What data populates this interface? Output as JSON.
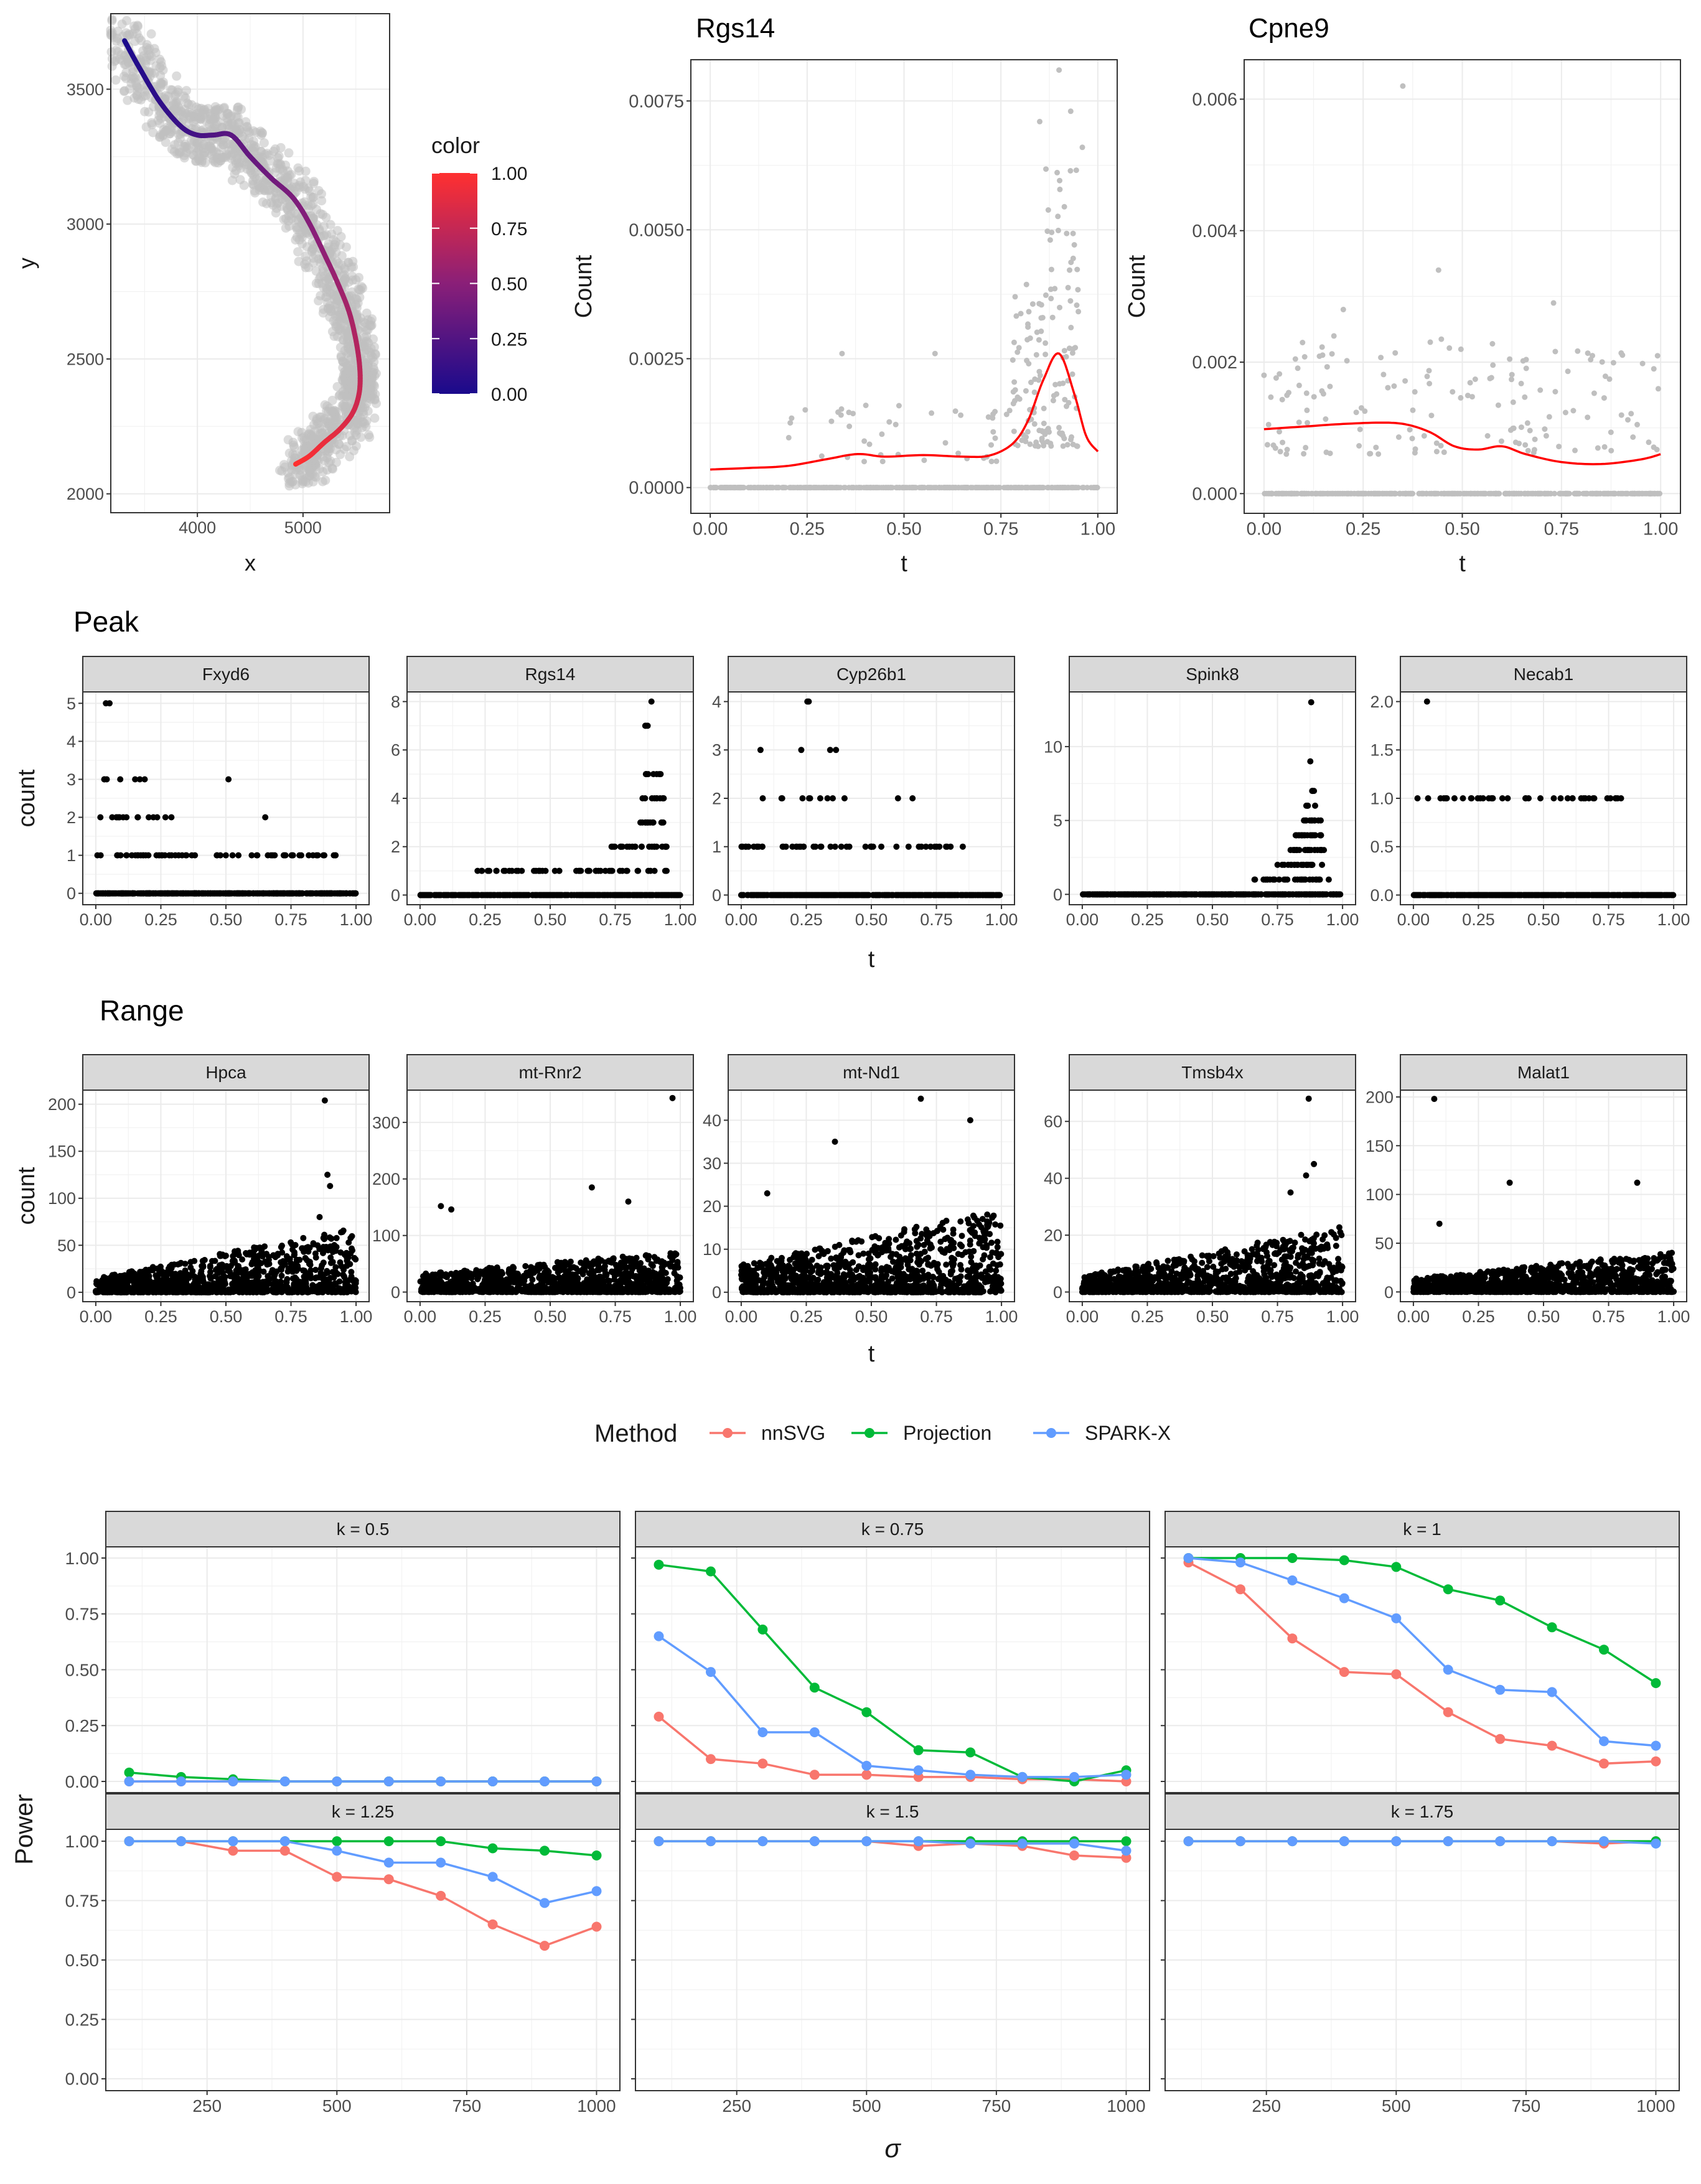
{
  "chart_data": [
    {
      "type": "scatter",
      "panel": "A",
      "xlabel": "x",
      "ylabel": "y",
      "xlim": [
        3180,
        5820
      ],
      "ylim": [
        1930,
        3780
      ],
      "xticks": [
        4000,
        5000
      ],
      "yticks": [
        2000,
        2500,
        3000,
        3500
      ],
      "xtick_labels": [
        "4000",
        "5000"
      ],
      "ytick_labels": [
        "2000",
        "2500",
        "3000",
        "3500"
      ],
      "point_color": "#bfbfbf",
      "curve": {
        "x": [
          3310,
          3450,
          3650,
          3850,
          4000,
          4150,
          4320,
          4500,
          4700,
          4900,
          5050,
          5200,
          5330,
          5440,
          5510,
          5540,
          5530,
          5470,
          5350,
          5200,
          5060,
          4930
        ],
        "y": [
          3680,
          3580,
          3450,
          3360,
          3330,
          3330,
          3330,
          3250,
          3170,
          3100,
          3010,
          2890,
          2780,
          2670,
          2550,
          2450,
          2370,
          2300,
          2240,
          2190,
          2140,
          2110
        ],
        "color_values": [
          0.0,
          0.04,
          0.09,
          0.14,
          0.18,
          0.22,
          0.27,
          0.32,
          0.37,
          0.42,
          0.47,
          0.52,
          0.57,
          0.62,
          0.67,
          0.72,
          0.77,
          0.82,
          0.86,
          0.9,
          0.95,
          1.0
        ]
      },
      "legend": {
        "title": "color",
        "labels": [
          "1.00",
          "0.75",
          "0.50",
          "0.25",
          "0.00"
        ],
        "low_color": "#1a0a8c",
        "mid_color": "#8a1f78",
        "high_color": "#ff3030"
      }
    },
    {
      "type": "scatter",
      "panel": "B",
      "title": "Rgs14",
      "xlabel": "t",
      "ylabel": "Count",
      "xlim": [
        -0.05,
        1.05
      ],
      "ylim": [
        -0.0005,
        0.0083
      ],
      "xticks": [
        0,
        0.25,
        0.5,
        0.75,
        1.0
      ],
      "xtick_labels": [
        "0.00",
        "0.25",
        "0.50",
        "0.75",
        "1.00"
      ],
      "yticks": [
        0,
        0.0025,
        0.005,
        0.0075
      ],
      "ytick_labels": [
        "0.0000",
        "0.0025",
        "0.0050",
        "0.0075"
      ],
      "point_color": "#bfbfbf",
      "line_color": "#ff0000",
      "curve": {
        "x": [
          0,
          0.1,
          0.2,
          0.3,
          0.38,
          0.45,
          0.55,
          0.65,
          0.72,
          0.78,
          0.82,
          0.86,
          0.9,
          0.94,
          0.97,
          1.0
        ],
        "y": [
          0.00035,
          0.00038,
          0.00042,
          0.00055,
          0.00065,
          0.0006,
          0.00063,
          0.0006,
          0.00062,
          0.00085,
          0.0013,
          0.0021,
          0.0026,
          0.0018,
          0.001,
          0.0007
        ]
      }
    },
    {
      "type": "scatter",
      "panel": "C",
      "title": "Cpne9",
      "xlabel": "t",
      "ylabel": "Count",
      "xlim": [
        -0.05,
        1.05
      ],
      "ylim": [
        -0.0003,
        0.0066
      ],
      "xticks": [
        0,
        0.25,
        0.5,
        0.75,
        1.0
      ],
      "xtick_labels": [
        "0.00",
        "0.25",
        "0.50",
        "0.75",
        "1.00"
      ],
      "yticks": [
        0,
        0.002,
        0.004,
        0.006
      ],
      "ytick_labels": [
        "0.000",
        "0.002",
        "0.004",
        "0.006"
      ],
      "point_color": "#bfbfbf",
      "line_color": "#ff0000",
      "curve": {
        "x": [
          0,
          0.1,
          0.2,
          0.3,
          0.36,
          0.42,
          0.48,
          0.54,
          0.6,
          0.66,
          0.75,
          0.85,
          0.95,
          1.0
        ],
        "y": [
          0.00098,
          0.00102,
          0.00106,
          0.00108,
          0.00105,
          0.00093,
          0.00072,
          0.00067,
          0.00072,
          0.0006,
          0.00048,
          0.00045,
          0.00052,
          0.0006
        ]
      }
    },
    {
      "type": "scatter",
      "group": "Peak",
      "title": "Peak",
      "xlabel": "t",
      "ylabel": "count",
      "point_color": "#000000",
      "xtick_labels": [
        "0.00",
        "0.25",
        "0.50",
        "0.75",
        "1.00"
      ],
      "facets": [
        {
          "label": "Fxyd6",
          "ylim": [
            -0.3,
            5.3
          ],
          "yticks": [
            0,
            1,
            2,
            3,
            4,
            5
          ],
          "ytick_labels": [
            "0",
            "1",
            "2",
            "3",
            "4",
            "5"
          ]
        },
        {
          "label": "Rgs14",
          "ylim": [
            -0.4,
            8.4
          ],
          "yticks": [
            0,
            2,
            4,
            6,
            8
          ],
          "ytick_labels": [
            "0",
            "2",
            "4",
            "6",
            "8"
          ]
        },
        {
          "label": "Cyp26b1",
          "ylim": [
            -0.2,
            4.2
          ],
          "yticks": [
            0,
            1,
            2,
            3,
            4
          ],
          "ytick_labels": [
            "0",
            "1",
            "2",
            "3",
            "4"
          ]
        },
        {
          "label": "Spink8",
          "ylim": [
            -0.7,
            13.7
          ],
          "yticks": [
            0,
            5,
            10
          ],
          "ytick_labels": [
            "0",
            "5",
            "10"
          ]
        },
        {
          "label": "Necab1",
          "ylim": [
            -0.1,
            2.1
          ],
          "yticks": [
            0,
            0.5,
            1.0,
            1.5,
            2.0
          ],
          "ytick_labels": [
            "0.0",
            "0.5",
            "1.0",
            "1.5",
            "2.0"
          ]
        }
      ]
    },
    {
      "type": "scatter",
      "group": "Range",
      "title": "Range",
      "xlabel": "t",
      "ylabel": "count",
      "point_color": "#000000",
      "xtick_labels": [
        "0.00",
        "0.25",
        "0.50",
        "0.75",
        "1.00"
      ],
      "facets": [
        {
          "label": "Hpca",
          "ylim": [
            -10,
            215
          ],
          "yticks": [
            0,
            50,
            100,
            150,
            200
          ],
          "ytick_labels": [
            "0",
            "50",
            "100",
            "150",
            "200"
          ]
        },
        {
          "label": "mt-Rnr2",
          "ylim": [
            -17,
            357
          ],
          "yticks": [
            0,
            100,
            200,
            300
          ],
          "ytick_labels": [
            "0",
            "100",
            "200",
            "300"
          ]
        },
        {
          "label": "mt-Nd1",
          "ylim": [
            -2.2,
            47
          ],
          "yticks": [
            0,
            10,
            20,
            30,
            40
          ],
          "ytick_labels": [
            "0",
            "10",
            "20",
            "30",
            "40"
          ]
        },
        {
          "label": "Tmsb4x",
          "ylim": [
            -3.4,
            71
          ],
          "yticks": [
            0,
            20,
            40,
            60
          ],
          "ytick_labels": [
            "0",
            "20",
            "40",
            "60"
          ]
        },
        {
          "label": "Malat1",
          "ylim": [
            -10,
            207
          ],
          "yticks": [
            0,
            50,
            100,
            150,
            200
          ],
          "ytick_labels": [
            "0",
            "50",
            "100",
            "150",
            "200"
          ]
        }
      ]
    },
    {
      "type": "line",
      "panel": "Power",
      "xlabel": "σ",
      "ylabel": "Power",
      "x": [
        100,
        200,
        300,
        400,
        500,
        600,
        700,
        800,
        900,
        1000
      ],
      "xlim": [
        55,
        1045
      ],
      "ylim": [
        -0.05,
        1.05
      ],
      "xticks": [
        250,
        500,
        750,
        1000
      ],
      "xtick_labels": [
        "250",
        "500",
        "750",
        "1000"
      ],
      "yticks": [
        0,
        0.25,
        0.5,
        0.75,
        1.0
      ],
      "ytick_labels": [
        "0.00",
        "0.25",
        "0.50",
        "0.75",
        "1.00"
      ],
      "legend": {
        "title": "Method",
        "position": "top"
      },
      "series_meta": [
        {
          "name": "nnSVG",
          "color": "#f8766d"
        },
        {
          "name": "Projection",
          "color": "#00ba38"
        },
        {
          "name": "SPARK-X",
          "color": "#619cff"
        }
      ],
      "facets": [
        {
          "label": "k =  0.5",
          "series": [
            {
              "name": "nnSVG",
              "values": [
                0,
                0,
                0,
                0,
                0,
                0,
                0,
                0,
                0,
                0
              ]
            },
            {
              "name": "Projection",
              "values": [
                0.04,
                0.02,
                0.01,
                0,
                0,
                0,
                0,
                0,
                0,
                0
              ]
            },
            {
              "name": "SPARK-X",
              "values": [
                0,
                0,
                0,
                0,
                0,
                0,
                0,
                0,
                0,
                0
              ]
            }
          ]
        },
        {
          "label": "k =  0.75",
          "series": [
            {
              "name": "nnSVG",
              "values": [
                0.29,
                0.1,
                0.08,
                0.03,
                0.03,
                0.02,
                0.02,
                0.01,
                0.01,
                0.0
              ]
            },
            {
              "name": "Projection",
              "values": [
                0.97,
                0.94,
                0.68,
                0.42,
                0.31,
                0.14,
                0.13,
                0.02,
                0.0,
                0.05
              ]
            },
            {
              "name": "SPARK-X",
              "values": [
                0.65,
                0.49,
                0.22,
                0.22,
                0.07,
                0.05,
                0.03,
                0.02,
                0.02,
                0.03
              ]
            }
          ]
        },
        {
          "label": "k =  1",
          "series": [
            {
              "name": "nnSVG",
              "values": [
                0.98,
                0.86,
                0.64,
                0.49,
                0.48,
                0.31,
                0.19,
                0.16,
                0.08,
                0.09
              ]
            },
            {
              "name": "Projection",
              "values": [
                1.0,
                1.0,
                1.0,
                0.99,
                0.96,
                0.86,
                0.81,
                0.69,
                0.59,
                0.44
              ]
            },
            {
              "name": "SPARK-X",
              "values": [
                1.0,
                0.98,
                0.9,
                0.82,
                0.73,
                0.5,
                0.41,
                0.4,
                0.18,
                0.16
              ]
            }
          ]
        },
        {
          "label": "k =  1.25",
          "series": [
            {
              "name": "nnSVG",
              "values": [
                1.0,
                1.0,
                0.96,
                0.96,
                0.85,
                0.84,
                0.77,
                0.65,
                0.56,
                0.64
              ]
            },
            {
              "name": "Projection",
              "values": [
                1.0,
                1.0,
                1.0,
                1.0,
                1.0,
                1.0,
                1.0,
                0.97,
                0.96,
                0.94
              ]
            },
            {
              "name": "SPARK-X",
              "values": [
                1.0,
                1.0,
                1.0,
                1.0,
                0.96,
                0.91,
                0.91,
                0.85,
                0.74,
                0.79
              ]
            }
          ]
        },
        {
          "label": "k =  1.5",
          "series": [
            {
              "name": "nnSVG",
              "values": [
                1.0,
                1.0,
                1.0,
                1.0,
                1.0,
                0.98,
                0.99,
                0.98,
                0.94,
                0.93
              ]
            },
            {
              "name": "Projection",
              "values": [
                1.0,
                1.0,
                1.0,
                1.0,
                1.0,
                1.0,
                1.0,
                1.0,
                1.0,
                1.0
              ]
            },
            {
              "name": "SPARK-X",
              "values": [
                1.0,
                1.0,
                1.0,
                1.0,
                1.0,
                1.0,
                0.99,
                0.99,
                0.99,
                0.96
              ]
            }
          ]
        },
        {
          "label": "k =  1.75",
          "series": [
            {
              "name": "nnSVG",
              "values": [
                1.0,
                1.0,
                1.0,
                1.0,
                1.0,
                1.0,
                1.0,
                1.0,
                0.99,
                1.0
              ]
            },
            {
              "name": "Projection",
              "values": [
                1.0,
                1.0,
                1.0,
                1.0,
                1.0,
                1.0,
                1.0,
                1.0,
                1.0,
                1.0
              ]
            },
            {
              "name": "SPARK-X",
              "values": [
                1.0,
                1.0,
                1.0,
                1.0,
                1.0,
                1.0,
                1.0,
                1.0,
                1.0,
                0.99
              ]
            }
          ]
        }
      ]
    }
  ]
}
